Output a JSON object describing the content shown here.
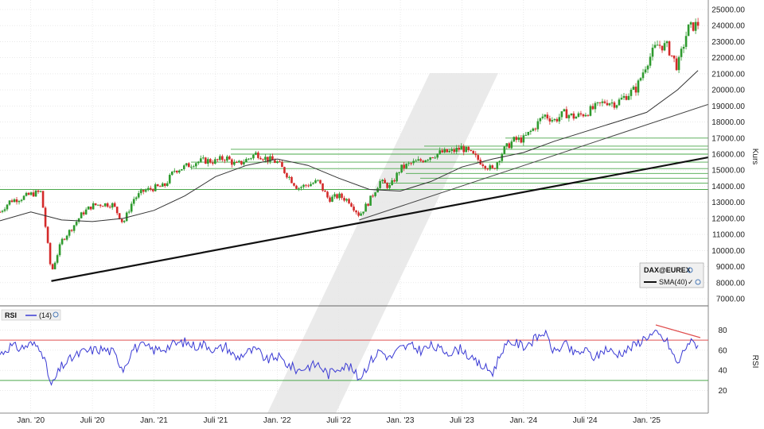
{
  "chart_data": [
    {
      "type": "candlestick",
      "ylabel": "Kurs",
      "ylim": [
        7000,
        25000
      ],
      "yticks": [
        "7000.00",
        "8000.00",
        "9000.00",
        "10000.00",
        "11000.00",
        "12000.00",
        "13000.00",
        "14000.00",
        "15000.00",
        "16000.00",
        "17000.00",
        "18000.00",
        "19000.00",
        "20000.00",
        "21000.00",
        "22000.00",
        "23000.00",
        "24000.00",
        "25000.00"
      ],
      "xticks": [
        "Jan. '20",
        "Juli '20",
        "Jan. '21",
        "Juli '21",
        "Jan. '22",
        "Juli '22",
        "Jan. '23",
        "Juli '23",
        "Jan. '24",
        "Juli '24",
        "Jan. '25"
      ],
      "x_range": [
        "2019-10",
        "2025-07"
      ],
      "legend": {
        "symbol": "DAX@EUREX",
        "sma_label": "SMA(40)"
      },
      "colors": {
        "up": "#2e9a2e",
        "down": "#d42a2a",
        "sma": "#333333",
        "trend": "#111111",
        "support": "#4aa84a"
      },
      "series": [
        {
          "name": "DAX@EUREX",
          "values": [
            [
              "2019-10",
              12400
            ],
            [
              "2019-11",
              13100
            ],
            [
              "2019-12",
              13250
            ],
            [
              "2020-01",
              13500
            ],
            [
              "2020-02",
              13650
            ],
            [
              "2020-03",
              8600
            ],
            [
              "2020-04",
              10600
            ],
            [
              "2020-05",
              11400
            ],
            [
              "2020-06",
              12300
            ],
            [
              "2020-07",
              12800
            ],
            [
              "2020-08",
              12900
            ],
            [
              "2020-09",
              12850
            ],
            [
              "2020-10",
              11700
            ],
            [
              "2020-11",
              13200
            ],
            [
              "2020-12",
              13700
            ],
            [
              "2021-01",
              13900
            ],
            [
              "2021-02",
              14000
            ],
            [
              "2021-03",
              15000
            ],
            [
              "2021-04",
              15200
            ],
            [
              "2021-05",
              15500
            ],
            [
              "2021-06",
              15600
            ],
            [
              "2021-07",
              15550
            ],
            [
              "2021-08",
              15800
            ],
            [
              "2021-09",
              15300
            ],
            [
              "2021-10",
              15650
            ],
            [
              "2021-11",
              16050
            ],
            [
              "2021-12",
              15700
            ],
            [
              "2022-01",
              15500
            ],
            [
              "2022-02",
              14700
            ],
            [
              "2022-03",
              13900
            ],
            [
              "2022-04",
              14100
            ],
            [
              "2022-05",
              14300
            ],
            [
              "2022-06",
              13200
            ],
            [
              "2022-07",
              13400
            ],
            [
              "2022-08",
              13100
            ],
            [
              "2022-09",
              12200
            ],
            [
              "2022-10",
              13100
            ],
            [
              "2022-11",
              14300
            ],
            [
              "2022-12",
              13950
            ],
            [
              "2023-01",
              15100
            ],
            [
              "2023-02",
              15400
            ],
            [
              "2023-03",
              15600
            ],
            [
              "2023-04",
              15900
            ],
            [
              "2023-05",
              16100
            ],
            [
              "2023-06",
              16150
            ],
            [
              "2023-07",
              16400
            ],
            [
              "2023-08",
              15950
            ],
            [
              "2023-09",
              15450
            ],
            [
              "2023-10",
              15000
            ],
            [
              "2023-11",
              16200
            ],
            [
              "2023-12",
              16850
            ],
            [
              "2024-01",
              16950
            ],
            [
              "2024-02",
              17600
            ],
            [
              "2024-03",
              18450
            ],
            [
              "2024-04",
              18100
            ],
            [
              "2024-05",
              18550
            ],
            [
              "2024-06",
              18300
            ],
            [
              "2024-07",
              18550
            ],
            [
              "2024-08",
              18900
            ],
            [
              "2024-09",
              19300
            ],
            [
              "2024-10",
              19150
            ],
            [
              "2024-11",
              19650
            ],
            [
              "2024-12",
              20100
            ],
            [
              "2025-01",
              21700
            ],
            [
              "2025-02",
              22800
            ],
            [
              "2025-03",
              22700
            ],
            [
              "2025-04",
              21400
            ],
            [
              "2025-05",
              23800
            ],
            [
              "2025-06",
              24100
            ]
          ]
        },
        {
          "name": "SMA(40)",
          "values": [
            [
              "2019-10",
              11850
            ],
            [
              "2020-01",
              12400
            ],
            [
              "2020-04",
              11900
            ],
            [
              "2020-07",
              11800
            ],
            [
              "2020-10",
              12000
            ],
            [
              "2021-01",
              12500
            ],
            [
              "2021-04",
              13400
            ],
            [
              "2021-07",
              14600
            ],
            [
              "2021-10",
              15300
            ],
            [
              "2022-01",
              15700
            ],
            [
              "2022-04",
              15300
            ],
            [
              "2022-07",
              14500
            ],
            [
              "2022-10",
              13800
            ],
            [
              "2023-01",
              13700
            ],
            [
              "2023-04",
              14300
            ],
            [
              "2023-07",
              15200
            ],
            [
              "2023-10",
              15700
            ],
            [
              "2024-01",
              16100
            ],
            [
              "2024-04",
              16800
            ],
            [
              "2024-07",
              17400
            ],
            [
              "2024-10",
              18000
            ],
            [
              "2025-01",
              18600
            ],
            [
              "2025-04",
              20000
            ],
            [
              "2025-06",
              21200
            ]
          ]
        }
      ]
    },
    {
      "type": "line",
      "ylabel": "RSI",
      "ylim": [
        0,
        100
      ],
      "yticks": [
        "20",
        "40",
        "60",
        "80"
      ],
      "legend": {
        "name": "RSI",
        "period_label": "(14)"
      },
      "levels": [
        30,
        70
      ],
      "series": [
        {
          "name": "RSI",
          "values": [
            [
              "2019-10",
              56
            ],
            [
              "2019-11",
              64
            ],
            [
              "2019-12",
              62
            ],
            [
              "2020-01",
              66
            ],
            [
              "2020-02",
              63
            ],
            [
              "2020-03",
              24
            ],
            [
              "2020-04",
              44
            ],
            [
              "2020-05",
              52
            ],
            [
              "2020-06",
              58
            ],
            [
              "2020-07",
              60
            ],
            [
              "2020-08",
              61
            ],
            [
              "2020-09",
              58
            ],
            [
              "2020-10",
              42
            ],
            [
              "2020-11",
              62
            ],
            [
              "2020-12",
              64
            ],
            [
              "2021-01",
              60
            ],
            [
              "2021-02",
              62
            ],
            [
              "2021-03",
              66
            ],
            [
              "2021-04",
              68
            ],
            [
              "2021-05",
              64
            ],
            [
              "2021-06",
              66
            ],
            [
              "2021-07",
              60
            ],
            [
              "2021-08",
              64
            ],
            [
              "2021-09",
              52
            ],
            [
              "2021-10",
              58
            ],
            [
              "2021-11",
              60
            ],
            [
              "2021-12",
              50
            ],
            [
              "2022-01",
              54
            ],
            [
              "2022-02",
              46
            ],
            [
              "2022-03",
              40
            ],
            [
              "2022-04",
              44
            ],
            [
              "2022-05",
              46
            ],
            [
              "2022-06",
              36
            ],
            [
              "2022-07",
              44
            ],
            [
              "2022-08",
              44
            ],
            [
              "2022-09",
              32
            ],
            [
              "2022-10",
              48
            ],
            [
              "2022-11",
              60
            ],
            [
              "2022-12",
              52
            ],
            [
              "2023-01",
              62
            ],
            [
              "2023-02",
              64
            ],
            [
              "2023-03",
              60
            ],
            [
              "2023-04",
              64
            ],
            [
              "2023-05",
              60
            ],
            [
              "2023-06",
              58
            ],
            [
              "2023-07",
              62
            ],
            [
              "2023-08",
              50
            ],
            [
              "2023-09",
              44
            ],
            [
              "2023-10",
              38
            ],
            [
              "2023-11",
              62
            ],
            [
              "2023-12",
              68
            ],
            [
              "2024-01",
              64
            ],
            [
              "2024-02",
              70
            ],
            [
              "2024-03",
              78
            ],
            [
              "2024-04",
              58
            ],
            [
              "2024-05",
              66
            ],
            [
              "2024-06",
              56
            ],
            [
              "2024-07",
              60
            ],
            [
              "2024-08",
              52
            ],
            [
              "2024-09",
              62
            ],
            [
              "2024-10",
              56
            ],
            [
              "2024-11",
              60
            ],
            [
              "2024-12",
              66
            ],
            [
              "2025-01",
              74
            ],
            [
              "2025-02",
              76
            ],
            [
              "2025-03",
              68
            ],
            [
              "2025-04",
              46
            ],
            [
              "2025-05",
              68
            ],
            [
              "2025-06",
              66
            ]
          ]
        }
      ]
    }
  ]
}
